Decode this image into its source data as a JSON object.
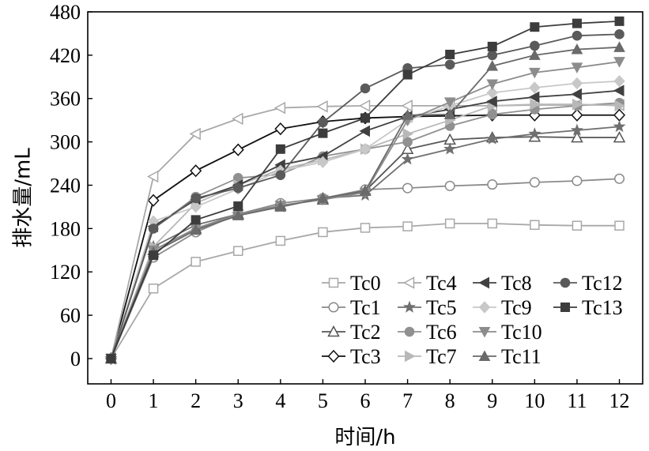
{
  "chart_data": {
    "type": "line",
    "xlabel": "时间/h",
    "ylabel": "排水量/mL",
    "xlim": [
      -0.55,
      12.55
    ],
    "ylim": [
      -35,
      480
    ],
    "x_ticks": [
      0,
      1,
      2,
      3,
      4,
      5,
      6,
      7,
      8,
      9,
      10,
      11,
      12
    ],
    "y_ticks": [
      0,
      60,
      120,
      180,
      240,
      300,
      360,
      420,
      480
    ],
    "x": [
      0,
      1,
      2,
      3,
      4,
      5,
      6,
      7,
      8,
      9,
      10,
      11,
      12
    ],
    "grid": false,
    "legend_position": "bottom-right",
    "legend_layout": "4 columns x 4 rows",
    "series": [
      {
        "name": "Tc0",
        "marker": "square-open",
        "color": "#a8a8a8",
        "values": [
          0,
          97,
          134,
          149,
          163,
          175,
          181,
          183,
          187,
          187,
          185,
          184,
          184
        ]
      },
      {
        "name": "Tc1",
        "marker": "circle-open",
        "color": "#8a8a8a",
        "values": [
          0,
          140,
          175,
          200,
          215,
          222,
          234,
          236,
          239,
          241,
          244,
          246,
          249
        ]
      },
      {
        "name": "Tc2",
        "marker": "triangle-up-open",
        "color": "#555555",
        "values": [
          0,
          150,
          180,
          200,
          212,
          220,
          232,
          290,
          303,
          306,
          307,
          306,
          306
        ]
      },
      {
        "name": "Tc3",
        "marker": "diamond-open",
        "color": "#111111",
        "values": [
          0,
          219,
          260,
          289,
          318,
          328,
          333,
          335,
          336,
          337,
          337,
          337,
          337
        ]
      },
      {
        "name": "Tc4",
        "marker": "triangle-left-open",
        "color": "#a8a8a8",
        "values": [
          0,
          252,
          311,
          332,
          347,
          349,
          350,
          350,
          350,
          350,
          351,
          351,
          351
        ]
      },
      {
        "name": "Tc5",
        "marker": "star",
        "color": "#707070",
        "values": [
          0,
          155,
          185,
          200,
          210,
          222,
          226,
          276,
          290,
          304,
          311,
          316,
          321
        ]
      },
      {
        "name": "Tc6",
        "marker": "circle-filled",
        "color": "#909090",
        "values": [
          0,
          180,
          224,
          250,
          255,
          280,
          290,
          300,
          322,
          338,
          345,
          350,
          354
        ]
      },
      {
        "name": "Tc7",
        "marker": "triangle-right-filled",
        "color": "#b8b8b8",
        "values": [
          0,
          155,
          215,
          240,
          262,
          275,
          290,
          311,
          330,
          350,
          352,
          352,
          350
        ]
      },
      {
        "name": "Tc8",
        "marker": "triangle-left-filled",
        "color": "#404040",
        "values": [
          0,
          183,
          220,
          240,
          268,
          280,
          315,
          335,
          345,
          356,
          362,
          366,
          371
        ]
      },
      {
        "name": "Tc9",
        "marker": "diamond-filled",
        "color": "#c8c8c8",
        "values": [
          0,
          190,
          210,
          235,
          260,
          272,
          290,
          330,
          350,
          368,
          375,
          381,
          384
        ]
      },
      {
        "name": "Tc10",
        "marker": "triangle-down-filled",
        "color": "#8c8c8c",
        "values": [
          0,
          150,
          180,
          200,
          212,
          220,
          230,
          330,
          355,
          380,
          396,
          403,
          411
        ]
      },
      {
        "name": "Tc11",
        "marker": "triangle-up-filled",
        "color": "#6a6a6a",
        "values": [
          0,
          147,
          178,
          198,
          210,
          222,
          232,
          337,
          338,
          405,
          420,
          428,
          431
        ]
      },
      {
        "name": "Tc12",
        "marker": "circle-filled",
        "color": "#5a5a5a",
        "values": [
          0,
          180,
          222,
          236,
          254,
          327,
          374,
          402,
          407,
          420,
          433,
          447,
          449
        ]
      },
      {
        "name": "Tc13",
        "marker": "square-filled",
        "color": "#3c3c3c",
        "values": [
          0,
          143,
          192,
          211,
          290,
          312,
          333,
          393,
          421,
          432,
          459,
          464,
          467
        ]
      }
    ]
  }
}
